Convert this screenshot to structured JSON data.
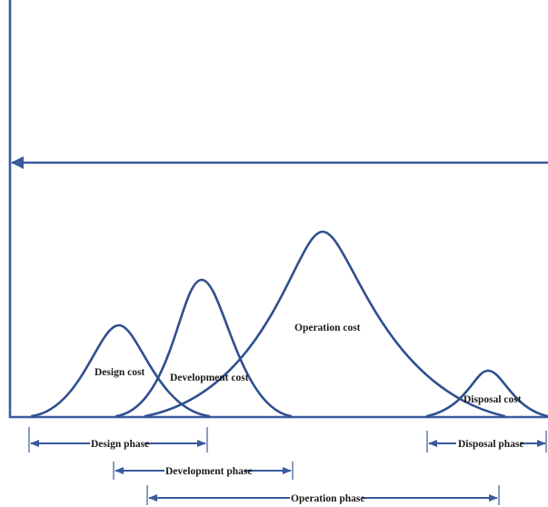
{
  "colors": {
    "line": "#3a5a9c",
    "curve": "#2f4f8f",
    "text": "#1a1a1a",
    "background": "#ffffff"
  },
  "cost_curves": [
    {
      "id": "design",
      "label": "Design cost"
    },
    {
      "id": "development",
      "label": "Development cost"
    },
    {
      "id": "operation",
      "label": "Operation cost"
    },
    {
      "id": "disposal",
      "label": "Disposal cost"
    }
  ],
  "phases": [
    {
      "id": "design",
      "label": "Design phase"
    },
    {
      "id": "development",
      "label": "Development phase"
    },
    {
      "id": "disposal",
      "label": "Disposal phase"
    },
    {
      "id": "operation",
      "label": "Operation phase"
    }
  ]
}
